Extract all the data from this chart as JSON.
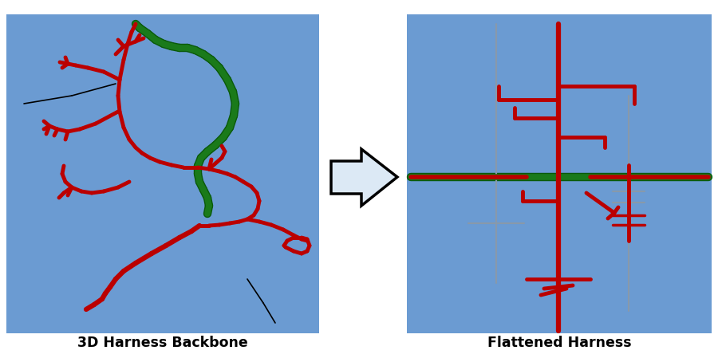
{
  "bg_color": "#6B9BD2",
  "white_bg": "#FFFFFF",
  "red": "#BB0000",
  "green": "#1A7A1A",
  "dark_green": "#0A5A0A",
  "black": "#000000",
  "gray": "#8899AA",
  "arrow_fill": "#DCE9F5",
  "title_left": "3D Harness Backbone",
  "title_right": "Flattened Harness",
  "title_fontsize": 12.5,
  "title_bold": true,
  "lw_red_thick": 3.5,
  "lw_green": 5.5,
  "lw_thin": 1.2
}
